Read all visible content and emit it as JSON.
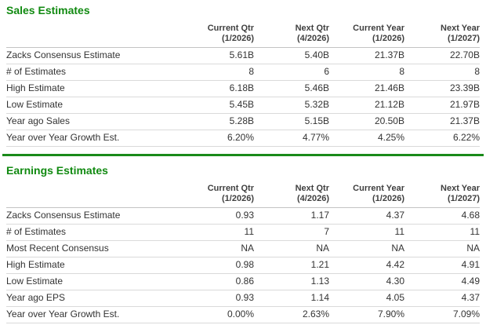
{
  "page": {
    "background": "#ffffff",
    "title_color": "#118a11",
    "divider_color": "#1a8a1a"
  },
  "chart_data": [
    {
      "type": "table",
      "id": "sales-estimates",
      "title": "Sales Estimates",
      "columns": [
        {
          "label": "Current Qtr",
          "period": "(1/2026)"
        },
        {
          "label": "Next Qtr",
          "period": "(4/2026)"
        },
        {
          "label": "Current Year",
          "period": "(1/2026)"
        },
        {
          "label": "Next Year",
          "period": "(1/2027)"
        }
      ],
      "rows": [
        {
          "label": "Zacks Consensus Estimate",
          "values": [
            "5.61B",
            "5.40B",
            "21.37B",
            "22.70B"
          ]
        },
        {
          "label": "# of Estimates",
          "values": [
            "8",
            "6",
            "8",
            "8"
          ]
        },
        {
          "label": "High Estimate",
          "values": [
            "6.18B",
            "5.46B",
            "21.46B",
            "23.39B"
          ]
        },
        {
          "label": "Low Estimate",
          "values": [
            "5.45B",
            "5.32B",
            "21.12B",
            "21.97B"
          ]
        },
        {
          "label": "Year ago Sales",
          "values": [
            "5.28B",
            "5.15B",
            "20.50B",
            "21.37B"
          ]
        },
        {
          "label": "Year over Year Growth Est.",
          "values": [
            "6.20%",
            "4.77%",
            "4.25%",
            "6.22%"
          ]
        }
      ]
    },
    {
      "type": "table",
      "id": "earnings-estimates",
      "title": "Earnings Estimates",
      "columns": [
        {
          "label": "Current Qtr",
          "period": "(1/2026)"
        },
        {
          "label": "Next Qtr",
          "period": "(4/2026)"
        },
        {
          "label": "Current Year",
          "period": "(1/2026)"
        },
        {
          "label": "Next Year",
          "period": "(1/2027)"
        }
      ],
      "rows": [
        {
          "label": "Zacks Consensus Estimate",
          "values": [
            "0.93",
            "1.17",
            "4.37",
            "4.68"
          ]
        },
        {
          "label": "# of Estimates",
          "values": [
            "11",
            "7",
            "11",
            "11"
          ]
        },
        {
          "label": "Most Recent Consensus",
          "values": [
            "NA",
            "NA",
            "NA",
            "NA"
          ]
        },
        {
          "label": "High Estimate",
          "values": [
            "0.98",
            "1.21",
            "4.42",
            "4.91"
          ]
        },
        {
          "label": "Low Estimate",
          "values": [
            "0.86",
            "1.13",
            "4.30",
            "4.49"
          ]
        },
        {
          "label": "Year ago EPS",
          "values": [
            "0.93",
            "1.14",
            "4.05",
            "4.37"
          ]
        },
        {
          "label": "Year over Year Growth Est.",
          "values": [
            "0.00%",
            "2.63%",
            "7.90%",
            "7.09%"
          ]
        }
      ]
    }
  ]
}
